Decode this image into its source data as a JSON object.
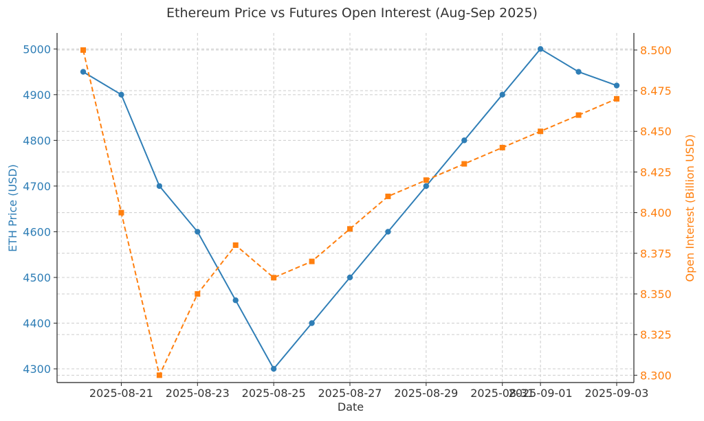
{
  "colors": {
    "eth": "#2f7eb6",
    "oi": "#ff7f0e",
    "axis": "#222222",
    "grid": "#cccccc",
    "text": "#333333"
  },
  "chart_data": {
    "type": "line",
    "title": "Ethereum Price vs Futures Open Interest (Aug-Sep 2025)",
    "xlabel": "Date",
    "ylabel_left": "ETH Price (USD)",
    "ylabel_right": "Open Interest (Billion USD)",
    "x": [
      "2025-08-20",
      "2025-08-21",
      "2025-08-22",
      "2025-08-23",
      "2025-08-24",
      "2025-08-25",
      "2025-08-26",
      "2025-08-27",
      "2025-08-28",
      "2025-08-29",
      "2025-08-30",
      "2025-08-31",
      "2025-09-01",
      "2025-09-02",
      "2025-09-03"
    ],
    "x_ticks": [
      "2025-08-21",
      "2025-08-23",
      "2025-08-25",
      "2025-08-27",
      "2025-08-29",
      "2025-08-31",
      "2025-09-01",
      "2025-09-03"
    ],
    "y_left_ticks": [
      "4300",
      "4400",
      "4500",
      "4600",
      "4700",
      "4800",
      "4900",
      "5000"
    ],
    "y_right_ticks": [
      "8.300",
      "8.325",
      "8.350",
      "8.375",
      "8.400",
      "8.425",
      "8.450",
      "8.475",
      "8.500"
    ],
    "ylim_left": [
      4270,
      5035
    ],
    "ylim_right": [
      8.2955,
      8.5105
    ],
    "grid": true,
    "series": [
      {
        "name": "ETH Price (USD)",
        "axis": "left",
        "style": "solid",
        "marker": "circle",
        "values": [
          4950,
          4900,
          4700,
          4600,
          4450,
          4300,
          4400,
          4500,
          4600,
          4700,
          4800,
          4900,
          5000,
          4950,
          4920
        ]
      },
      {
        "name": "Open Interest (Billion USD)",
        "axis": "right",
        "style": "dashed",
        "marker": "square",
        "values": [
          8.5,
          8.4,
          8.3,
          8.35,
          8.38,
          8.36,
          8.37,
          8.39,
          8.41,
          8.42,
          8.43,
          8.44,
          8.45,
          8.46,
          8.47
        ]
      }
    ]
  }
}
